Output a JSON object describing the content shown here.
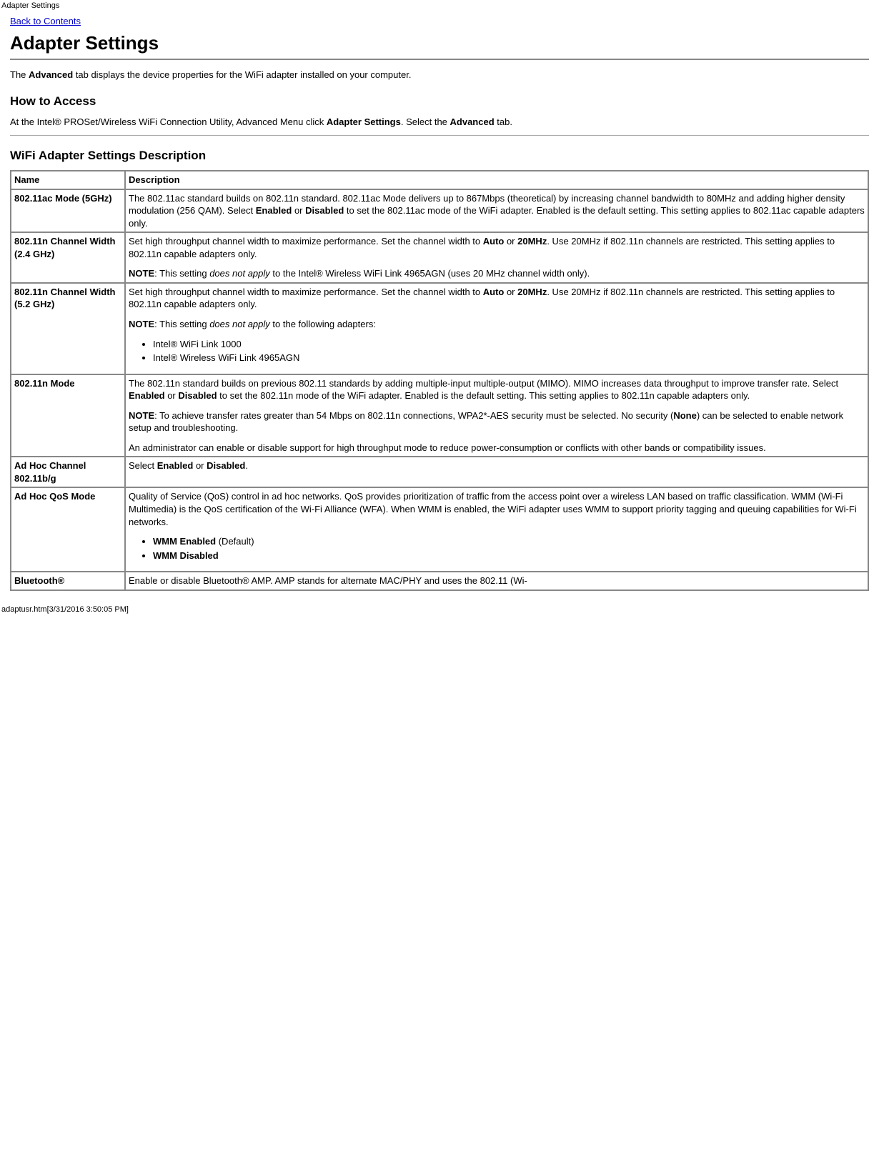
{
  "header": {
    "page_tag": "Adapter Settings",
    "back_link": "Back to Contents",
    "title": "Adapter Settings"
  },
  "intro": {
    "p1_pre": " The ",
    "p1_bold": "Advanced",
    "p1_post": " tab displays the device properties for the WiFi adapter installed on your computer."
  },
  "how_to_access": {
    "heading": "How to Access",
    "p_pre": "At the Intel® PROSet/Wireless WiFi Connection Utility, Advanced Menu click ",
    "p_b1": "Adapter Settings",
    "p_mid": ". Select the ",
    "p_b2": "Advanced",
    "p_post": " tab."
  },
  "table": {
    "heading": "WiFi Adapter Settings Description",
    "col_name": "Name",
    "col_desc": "Description",
    "rows": {
      "r0": {
        "name": "802.11ac Mode  (5GHz)",
        "d_pre": "The 802.11ac standard builds on 802.11n standard. 802.11ac Mode delivers up to 867Mbps (theoretical) by increasing channel bandwidth to 80MHz and adding higher density modulation (256 QAM). Select ",
        "d_b1": "Enabled",
        "d_mid1": " or ",
        "d_b2": "Disabled",
        "d_post": " to set the 802.11ac mode of the WiFi adapter. Enabled is the default setting. This setting applies to 802.11ac capable adapters only."
      },
      "r1": {
        "name": "802.11n Channel Width (2.4 GHz)",
        "d_pre": "Set high throughput channel width to maximize performance. Set the channel width to ",
        "d_b1": "Auto",
        "d_mid1": " or ",
        "d_b2": "20MHz",
        "d_post": ". Use 20MHz if 802.11n channels are restricted. This setting applies to 802.11n capable adapters only.",
        "note_b": "NOTE",
        "note_pre": ": This setting ",
        "note_em": "does not apply",
        "note_post": " to the Intel® Wireless WiFi Link 4965AGN (uses 20 MHz channel width only)."
      },
      "r2": {
        "name": "802.11n Channel Width (5.2 GHz)",
        "d_pre": "Set high throughput channel width to maximize performance. Set the channel width to ",
        "d_b1": "Auto",
        "d_mid1": " or ",
        "d_b2": "20MHz",
        "d_post": ". Use 20MHz if 802.11n channels are restricted. This setting applies to 802.11n capable adapters only.",
        "note_b": "NOTE",
        "note_pre": ": This setting ",
        "note_em": "does not apply",
        "note_post": " to the following adapters:",
        "li1": "Intel® WiFi Link 1000",
        "li2": "Intel® Wireless WiFi Link 4965AGN"
      },
      "r3": {
        "name": "802.11n Mode",
        "d_pre": "The 802.11n standard builds on previous 802.11 standards by adding multiple-input multiple-output (MIMO). MIMO increases data throughput to improve transfer rate. Select ",
        "d_b1": "Enabled",
        "d_mid1": " or ",
        "d_b2": "Disabled",
        "d_post": " to set the 802.11n mode of the WiFi adapter. Enabled is the default setting. This setting applies to 802.11n capable adapters only.",
        "note_b": "NOTE",
        "note_pre": ": To achieve transfer rates greater than 54 Mbps on 802.11n connections, WPA2*-AES security must be selected. No security (",
        "note_bold": "None",
        "note_post": ") can be selected to enable network setup and troubleshooting.",
        "p2": "An administrator can enable or disable support for high throughput mode to reduce power-consumption or conflicts with other bands or compatibility issues."
      },
      "r4": {
        "name": "Ad Hoc Channel 802.11b/g",
        "d_pre": "Select ",
        "d_b1": "Enabled",
        "d_mid1": " or ",
        "d_b2": "Disabled",
        "d_post": "."
      },
      "r5": {
        "name": "Ad Hoc QoS Mode",
        "d": "Quality of Service (QoS) control in ad hoc networks. QoS provides prioritization of traffic from the access point over a wireless LAN based on traffic classification. WMM (Wi-Fi Multimedia) is the QoS certification of the Wi-Fi Alliance (WFA). When WMM is enabled, the WiFi adapter uses WMM to support priority tagging and queuing capabilities for Wi-Fi networks.",
        "li1_b": "WMM Enabled",
        "li1_post": " (Default)",
        "li2_b": "WMM Disabled"
      },
      "r6": {
        "name": "Bluetooth®",
        "d": "Enable or disable Bluetooth® AMP. AMP stands for alternate MAC/PHY and uses the 802.11 (Wi-"
      }
    }
  },
  "footer": "adaptusr.htm[3/31/2016 3:50:05 PM]"
}
